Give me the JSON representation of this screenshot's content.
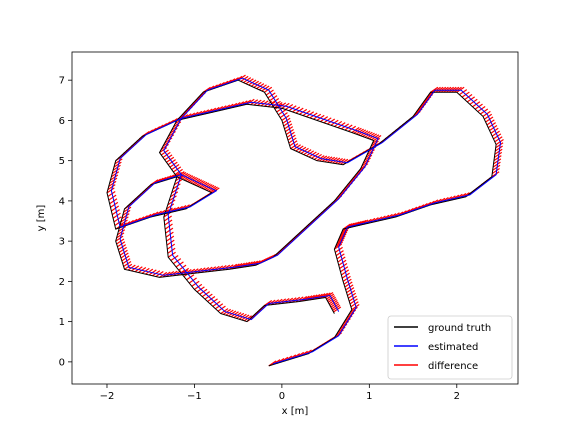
{
  "chart_data": {
    "type": "line",
    "title": "",
    "xlabel": "x [m]",
    "ylabel": "y [m]",
    "xlim": [
      -2.4,
      2.7
    ],
    "ylim": [
      -0.55,
      7.7
    ],
    "xticks": [
      -2,
      -1,
      0,
      1,
      2
    ],
    "yticks": [
      0,
      1,
      2,
      3,
      4,
      5,
      6,
      7
    ],
    "grid": false,
    "legend": {
      "placement": "lower-right",
      "entries": [
        {
          "label": "ground truth",
          "color": "#000000"
        },
        {
          "label": "estimated",
          "color": "#0000ff"
        },
        {
          "label": "difference",
          "color": "#ff0000"
        }
      ]
    },
    "series": [
      {
        "name": "ground truth",
        "color": "#000000",
        "x": [
          -0.15,
          0.3,
          0.6,
          0.8,
          0.7,
          0.6,
          0.7,
          0.9,
          1.3,
          1.7,
          2.1,
          2.4,
          2.45,
          2.3,
          2.0,
          1.7,
          1.5,
          1.1,
          0.7,
          0.4,
          0.1,
          0.0,
          -0.2,
          -0.5,
          -0.9,
          -1.2,
          -1.4,
          -1.2,
          -1.0,
          -0.8,
          -1.1,
          -1.5,
          -1.9,
          -2.0,
          -1.9,
          -1.6,
          -1.2,
          -0.8,
          -0.4,
          0.0,
          0.4,
          0.8,
          1.05,
          0.9,
          0.6,
          0.3,
          0.1,
          -0.1,
          -0.3,
          -0.6,
          -1.0,
          -1.4,
          -1.8,
          -1.9,
          -1.8,
          -1.5,
          -1.2,
          -1.35,
          -1.3,
          -1.0,
          -0.7,
          -0.4,
          -0.2,
          0.2,
          0.5,
          0.6
        ],
        "y": [
          -0.1,
          0.2,
          0.6,
          1.3,
          2.0,
          2.8,
          3.3,
          3.4,
          3.6,
          3.9,
          4.1,
          4.6,
          5.4,
          6.1,
          6.7,
          6.7,
          6.1,
          5.4,
          4.9,
          5.0,
          5.3,
          6.0,
          6.7,
          7.0,
          6.7,
          6.0,
          5.2,
          4.6,
          4.4,
          4.2,
          3.8,
          3.6,
          3.3,
          4.2,
          5.0,
          5.6,
          6.0,
          6.2,
          6.4,
          6.3,
          6.0,
          5.7,
          5.5,
          4.8,
          4.0,
          3.4,
          3.0,
          2.6,
          2.4,
          2.3,
          2.2,
          2.1,
          2.3,
          3.0,
          3.8,
          4.4,
          4.6,
          3.6,
          2.6,
          1.8,
          1.2,
          1.0,
          1.4,
          1.5,
          1.6,
          1.2
        ]
      },
      {
        "name": "estimated",
        "color": "#0000ff",
        "x": [
          -0.1,
          0.35,
          0.65,
          0.85,
          0.75,
          0.65,
          0.75,
          0.95,
          1.35,
          1.75,
          2.15,
          2.45,
          2.5,
          2.35,
          2.05,
          1.75,
          1.55,
          1.15,
          0.75,
          0.45,
          0.15,
          0.05,
          -0.15,
          -0.45,
          -0.85,
          -1.15,
          -1.35,
          -1.15,
          -0.95,
          -0.75,
          -1.05,
          -1.45,
          -1.85,
          -1.95,
          -1.85,
          -1.55,
          -1.15,
          -0.75,
          -0.35,
          0.05,
          0.45,
          0.85,
          1.1,
          0.95,
          0.65,
          0.35,
          0.15,
          -0.05,
          -0.25,
          -0.55,
          -0.95,
          -1.35,
          -1.75,
          -1.85,
          -1.75,
          -1.45,
          -1.15,
          -1.3,
          -1.25,
          -0.95,
          -0.65,
          -0.35,
          -0.15,
          0.25,
          0.55,
          0.65
        ],
        "y": [
          -0.05,
          0.25,
          0.65,
          1.35,
          2.05,
          2.85,
          3.35,
          3.45,
          3.65,
          3.95,
          4.15,
          4.65,
          5.45,
          6.15,
          6.75,
          6.75,
          6.15,
          5.45,
          4.95,
          5.05,
          5.35,
          6.05,
          6.75,
          7.05,
          6.75,
          6.05,
          5.25,
          4.65,
          4.45,
          4.25,
          3.85,
          3.65,
          3.35,
          4.25,
          5.05,
          5.65,
          6.05,
          6.25,
          6.45,
          6.35,
          6.05,
          5.75,
          5.55,
          4.85,
          4.05,
          3.45,
          3.05,
          2.65,
          2.45,
          2.35,
          2.25,
          2.15,
          2.35,
          3.05,
          3.85,
          4.45,
          4.65,
          3.65,
          2.65,
          1.85,
          1.25,
          1.05,
          1.45,
          1.55,
          1.65,
          1.25
        ]
      }
    ]
  }
}
